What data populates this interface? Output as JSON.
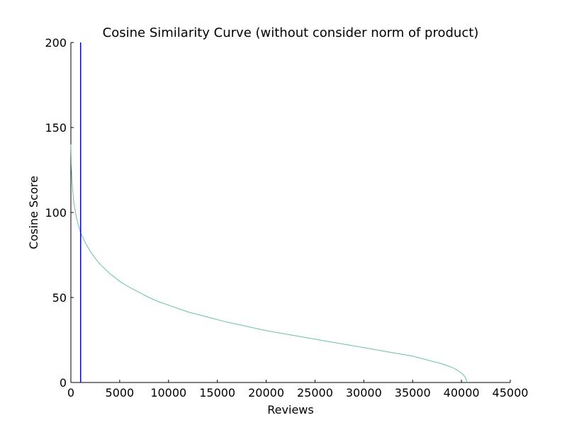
{
  "chart_data": {
    "type": "line",
    "title": "Cosine Similarity Curve (without consider norm of product)",
    "xlabel": "Reviews",
    "ylabel": "Cosine Score",
    "xlim": [
      0,
      45000
    ],
    "ylim": [
      0,
      200
    ],
    "x_ticks": [
      0,
      5000,
      10000,
      15000,
      20000,
      25000,
      30000,
      35000,
      40000,
      45000
    ],
    "y_ticks": [
      0,
      50,
      100,
      150,
      200
    ],
    "grid": false,
    "legend": "none",
    "series": [
      {
        "color": "#66c2a5",
        "x": [
          0,
          50,
          100,
          200,
          300,
          500,
          700,
          1000,
          1500,
          2000,
          2500,
          3000,
          4000,
          5000,
          6000,
          7000,
          8000,
          9000,
          10000,
          12000,
          14000,
          16000,
          18000,
          20000,
          22000,
          24000,
          26000,
          28000,
          30000,
          32000,
          34000,
          35000,
          36000,
          37000,
          38000,
          38500,
          39000,
          39500,
          40000,
          40200,
          40400,
          40500,
          40600
        ],
        "y": [
          140,
          127,
          120,
          112,
          106,
          99,
          94,
          88,
          82,
          77,
          73,
          69.5,
          64,
          59.5,
          56,
          53,
          50,
          47.5,
          45.5,
          41.5,
          38.5,
          35.5,
          33,
          30.5,
          28.5,
          26.5,
          24.5,
          22.5,
          20.5,
          18.5,
          16.5,
          15.5,
          14,
          12.5,
          11,
          10,
          9,
          7.5,
          5.5,
          4.5,
          3,
          1.5,
          0
        ]
      }
    ],
    "vlines": [
      {
        "x": 1000,
        "color": "#0000ff"
      }
    ]
  }
}
